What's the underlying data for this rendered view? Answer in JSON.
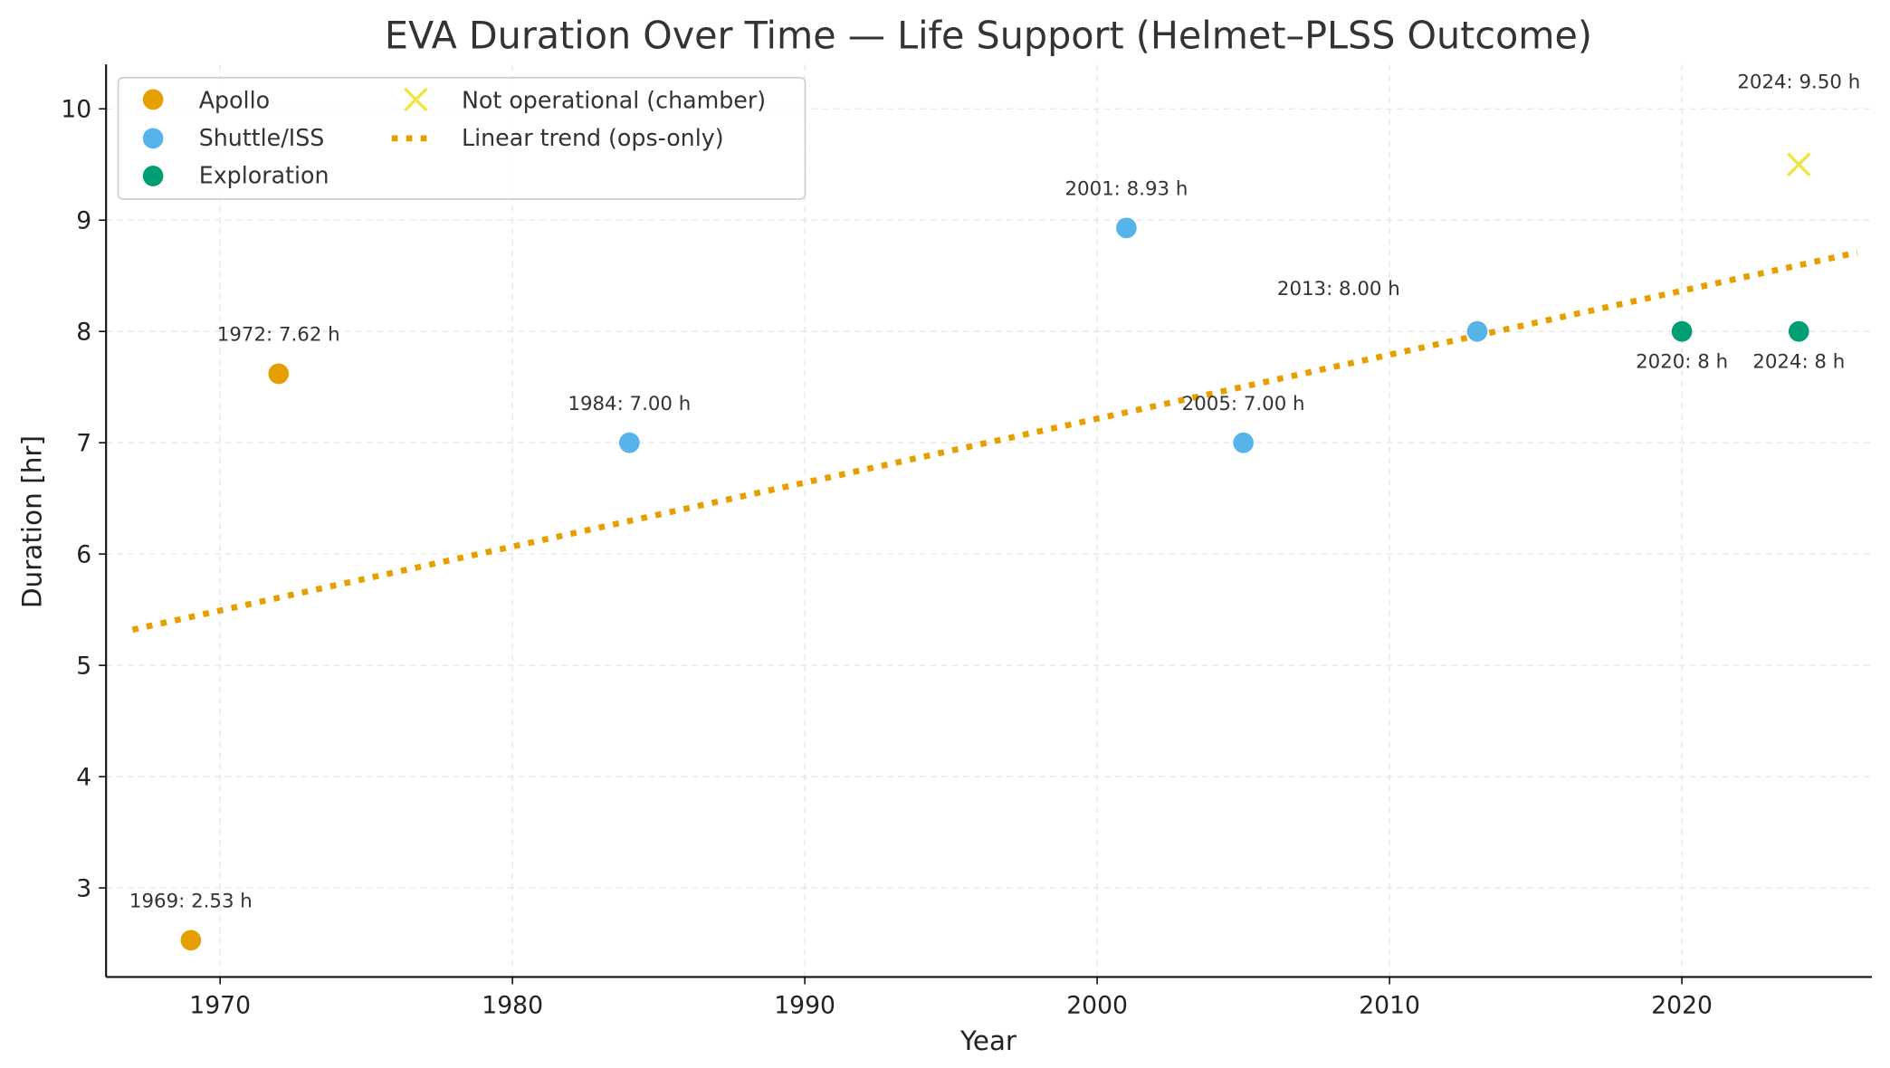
{
  "chart_data": {
    "type": "scatter",
    "title": "EVA Duration Over Time — Life Support (Helmet–PLSS Outcome)",
    "xlabel": "Year",
    "ylabel": "Duration [hr]",
    "xlim": [
      1966.1,
      2026.5
    ],
    "ylim": [
      2.2,
      10.4
    ],
    "xticks": [
      1970,
      1980,
      1990,
      2000,
      2010,
      2020
    ],
    "yticks": [
      3,
      4,
      5,
      6,
      7,
      8,
      9,
      10
    ],
    "grid": true,
    "legend_placement": "top-left",
    "series": [
      {
        "name": "Apollo",
        "marker": "circle",
        "color": "#E69F00",
        "points": [
          {
            "x": 1969,
            "y": 2.53,
            "label": "1969: 2.53 h",
            "label_position": "above"
          },
          {
            "x": 1972,
            "y": 7.62,
            "label": "1972: 7.62 h",
            "label_position": "above"
          }
        ]
      },
      {
        "name": "Shuttle/ISS",
        "marker": "circle",
        "color": "#56B4E9",
        "points": [
          {
            "x": 1984,
            "y": 7.0,
            "label": "1984: 7.00 h",
            "label_position": "above"
          },
          {
            "x": 2001,
            "y": 8.93,
            "label": "2001: 8.93 h",
            "label_position": "above"
          },
          {
            "x": 2005,
            "y": 7.0,
            "label": "2005: 7.00 h",
            "label_position": "above"
          },
          {
            "x": 2013,
            "y": 8.0,
            "label": "2013: 8.00 h",
            "label_position": "above-left"
          }
        ]
      },
      {
        "name": "Exploration",
        "marker": "circle",
        "color": "#009E73",
        "points": [
          {
            "x": 2020,
            "y": 8,
            "label": "2020: 8 h",
            "label_position": "below"
          },
          {
            "x": 2024,
            "y": 8,
            "label": "2024: 8 h",
            "label_position": "below"
          }
        ]
      },
      {
        "name": "Not operational (chamber)",
        "marker": "x",
        "color": "#F0E442",
        "points": [
          {
            "x": 2024,
            "y": 9.5,
            "label": "2024: 9.50 h",
            "label_position": "far-above"
          }
        ]
      }
    ],
    "trend": {
      "name": "Linear trend (ops-only)",
      "style": "dotted",
      "color": "#E69F00",
      "x": [
        1967,
        2026
      ],
      "y": [
        5.32,
        8.71
      ]
    }
  }
}
